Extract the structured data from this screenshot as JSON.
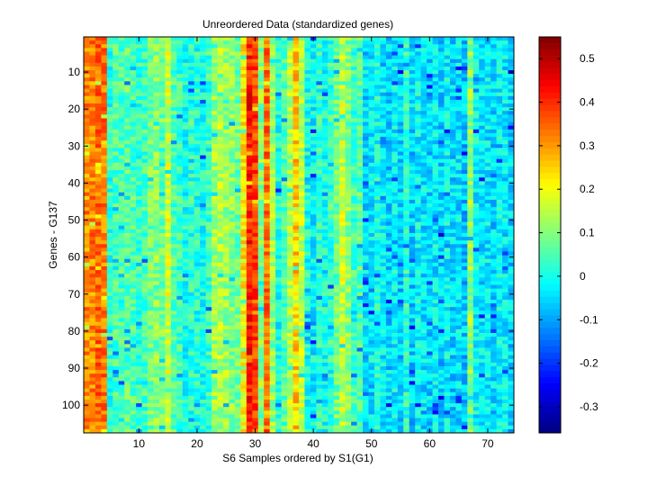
{
  "chart_data": {
    "type": "heatmap",
    "title": "Unreordered Data (standardized genes)",
    "xlabel": "S6 Samples ordered by S1(G1)",
    "ylabel": "Genes - G137",
    "n_cols": 74,
    "n_rows": 107,
    "xlim": [
      0.5,
      74.5
    ],
    "ylim": [
      0.5,
      107.5
    ],
    "x_ticks": [
      10,
      20,
      30,
      40,
      50,
      60,
      70
    ],
    "y_ticks": [
      10,
      20,
      30,
      40,
      50,
      60,
      70,
      80,
      90,
      100
    ],
    "y_direction": "reverse",
    "colormap": "jet",
    "color_range": [
      -0.36,
      0.55
    ],
    "colorbar_ticks": [
      -0.3,
      -0.2,
      -0.1,
      0,
      0.1,
      0.2,
      0.3,
      0.4,
      0.5
    ],
    "colorbar_tick_labels": [
      "-0.3",
      "-0.2",
      "-0.1",
      "0",
      "0.1",
      "0.2",
      "0.3",
      "0.4",
      "0.5"
    ],
    "column_profile": [
      [
        1,
        0.31
      ],
      [
        2,
        0.32
      ],
      [
        3,
        0.34
      ],
      [
        4,
        0.33
      ],
      [
        5,
        0.02
      ],
      [
        6,
        0.05
      ],
      [
        7,
        0.04
      ],
      [
        8,
        0.06
      ],
      [
        9,
        0.05
      ],
      [
        10,
        0.03
      ],
      [
        11,
        0.04
      ],
      [
        12,
        0.08
      ],
      [
        13,
        0.1
      ],
      [
        14,
        0.08
      ],
      [
        15,
        0.17
      ],
      [
        16,
        0.05
      ],
      [
        17,
        0.03
      ],
      [
        18,
        0.0
      ],
      [
        19,
        0.02
      ],
      [
        20,
        0.01
      ],
      [
        21,
        0.0
      ],
      [
        22,
        0.03
      ],
      [
        23,
        0.12
      ],
      [
        24,
        0.14
      ],
      [
        25,
        0.12
      ],
      [
        26,
        0.1
      ],
      [
        27,
        0.08
      ],
      [
        28,
        0.22
      ],
      [
        29,
        0.42
      ],
      [
        30,
        0.38
      ],
      [
        31,
        0.1
      ],
      [
        32,
        0.34
      ],
      [
        33,
        0.12
      ],
      [
        34,
        0.0
      ],
      [
        35,
        0.05
      ],
      [
        36,
        0.14
      ],
      [
        37,
        0.25
      ],
      [
        38,
        0.15
      ],
      [
        39,
        0.0
      ],
      [
        40,
        -0.02
      ],
      [
        41,
        0.02
      ],
      [
        42,
        0.0
      ],
      [
        43,
        0.03
      ],
      [
        44,
        0.08
      ],
      [
        45,
        0.16
      ],
      [
        46,
        0.1
      ],
      [
        47,
        0.04
      ],
      [
        48,
        0.06
      ],
      [
        49,
        -0.05
      ],
      [
        50,
        -0.03
      ],
      [
        51,
        0.0
      ],
      [
        52,
        -0.03
      ],
      [
        53,
        -0.05
      ],
      [
        54,
        -0.02
      ],
      [
        55,
        -0.06
      ],
      [
        56,
        0.02
      ],
      [
        57,
        -0.06
      ],
      [
        58,
        -0.02
      ],
      [
        59,
        -0.04
      ],
      [
        60,
        -0.05
      ],
      [
        61,
        -0.03
      ],
      [
        62,
        -0.06
      ],
      [
        63,
        -0.02
      ],
      [
        64,
        -0.05
      ],
      [
        65,
        -0.04
      ],
      [
        66,
        -0.07
      ],
      [
        67,
        0.12
      ],
      [
        68,
        -0.02
      ],
      [
        69,
        -0.04
      ],
      [
        70,
        -0.03
      ],
      [
        71,
        -0.05
      ],
      [
        72,
        -0.02
      ],
      [
        73,
        -0.03
      ],
      [
        74,
        -0.06
      ]
    ]
  }
}
